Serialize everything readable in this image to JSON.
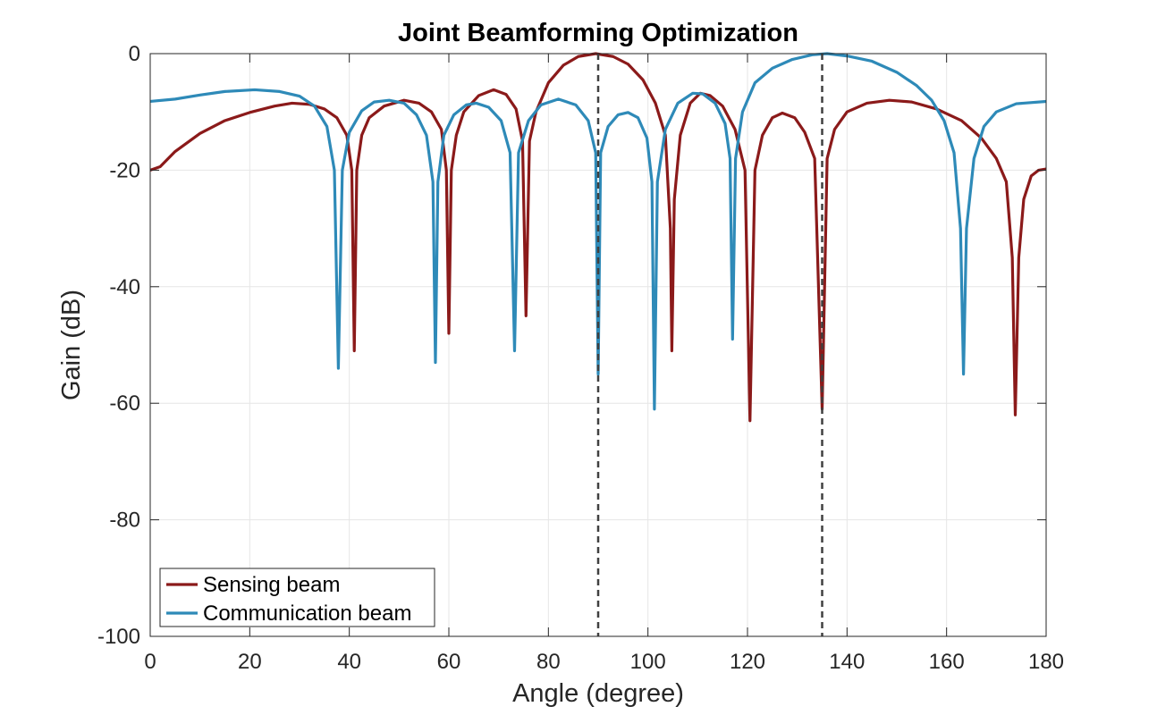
{
  "chart_data": {
    "type": "line",
    "title": "Joint Beamforming Optimization",
    "xlabel": "Angle (degree)",
    "ylabel": "Gain (dB)",
    "xlim": [
      0,
      180
    ],
    "ylim": [
      -100,
      0
    ],
    "xticks": [
      0,
      20,
      40,
      60,
      80,
      100,
      120,
      140,
      160,
      180
    ],
    "yticks": [
      -100,
      -80,
      -60,
      -40,
      -20,
      0
    ],
    "grid": true,
    "legend_location": "bottom-left",
    "reference_lines": [
      {
        "x": 90,
        "style": "dashed",
        "color": "#404040"
      },
      {
        "x": 135,
        "style": "dashed",
        "color": "#404040"
      }
    ],
    "series": [
      {
        "name": "Sensing beam",
        "color": "#8B1A1A",
        "points": [
          [
            0,
            -20
          ],
          [
            2,
            -19.4
          ],
          [
            5,
            -16.8
          ],
          [
            10,
            -13.7
          ],
          [
            15,
            -11.5
          ],
          [
            20,
            -10.1
          ],
          [
            25,
            -9
          ],
          [
            28.5,
            -8.5
          ],
          [
            32,
            -8.7
          ],
          [
            35,
            -9.5
          ],
          [
            37.5,
            -11
          ],
          [
            39.5,
            -14
          ],
          [
            40.5,
            -20
          ],
          [
            41,
            -51
          ],
          [
            41.5,
            -20
          ],
          [
            42.5,
            -14
          ],
          [
            44,
            -11
          ],
          [
            47,
            -9
          ],
          [
            51,
            -8
          ],
          [
            54,
            -8.5
          ],
          [
            56.5,
            -10
          ],
          [
            58.5,
            -13
          ],
          [
            59.5,
            -20
          ],
          [
            60,
            -48
          ],
          [
            60.5,
            -20
          ],
          [
            61.5,
            -14
          ],
          [
            63,
            -10
          ],
          [
            66,
            -7.2
          ],
          [
            69,
            -6.2
          ],
          [
            71.5,
            -7
          ],
          [
            73.5,
            -9.5
          ],
          [
            74.8,
            -15
          ],
          [
            75.5,
            -45
          ],
          [
            76.2,
            -15
          ],
          [
            77.5,
            -10
          ],
          [
            80,
            -5
          ],
          [
            83,
            -2
          ],
          [
            86,
            -0.5
          ],
          [
            89.5,
            0
          ],
          [
            93,
            -0.5
          ],
          [
            96,
            -1.8
          ],
          [
            99,
            -4.5
          ],
          [
            101.5,
            -8.5
          ],
          [
            103.5,
            -14
          ],
          [
            104.5,
            -30
          ],
          [
            104.8,
            -51
          ],
          [
            105.3,
            -25
          ],
          [
            106.5,
            -14
          ],
          [
            108.5,
            -8.5
          ],
          [
            110.5,
            -6.8
          ],
          [
            112.5,
            -7.2
          ],
          [
            115,
            -9
          ],
          [
            117.5,
            -13
          ],
          [
            119.5,
            -20
          ],
          [
            120.5,
            -63
          ],
          [
            121.5,
            -20
          ],
          [
            123,
            -14
          ],
          [
            125,
            -11
          ],
          [
            127,
            -10.2
          ],
          [
            129.5,
            -11
          ],
          [
            131.5,
            -13.5
          ],
          [
            133.5,
            -18
          ],
          [
            135,
            -61
          ],
          [
            136,
            -18
          ],
          [
            137.5,
            -13
          ],
          [
            140,
            -10
          ],
          [
            144,
            -8.5
          ],
          [
            148.5,
            -8
          ],
          [
            153,
            -8.3
          ],
          [
            158,
            -9.5
          ],
          [
            163,
            -11.5
          ],
          [
            167,
            -14.5
          ],
          [
            170,
            -18
          ],
          [
            172,
            -22
          ],
          [
            173.2,
            -35
          ],
          [
            173.8,
            -62
          ],
          [
            174.5,
            -35
          ],
          [
            175.5,
            -25
          ],
          [
            177,
            -21
          ],
          [
            178.5,
            -20
          ],
          [
            180,
            -19.8
          ]
        ]
      },
      {
        "name": "Communication beam",
        "color": "#2E8AB8",
        "points": [
          [
            0,
            -8.2
          ],
          [
            5,
            -7.8
          ],
          [
            10,
            -7.1
          ],
          [
            15,
            -6.5
          ],
          [
            21,
            -6.2
          ],
          [
            26,
            -6.5
          ],
          [
            30,
            -7.3
          ],
          [
            33,
            -9
          ],
          [
            35.5,
            -12.5
          ],
          [
            37,
            -20
          ],
          [
            37.8,
            -54
          ],
          [
            38.6,
            -20
          ],
          [
            40,
            -13.5
          ],
          [
            42.5,
            -9.8
          ],
          [
            45,
            -8.3
          ],
          [
            48,
            -8
          ],
          [
            51,
            -8.5
          ],
          [
            53.5,
            -10.5
          ],
          [
            55.5,
            -14
          ],
          [
            56.8,
            -22
          ],
          [
            57.3,
            -53
          ],
          [
            57.8,
            -22
          ],
          [
            59,
            -14
          ],
          [
            61,
            -10.5
          ],
          [
            63.5,
            -8.8
          ],
          [
            65.5,
            -8.5
          ],
          [
            68,
            -9.2
          ],
          [
            70.5,
            -11.5
          ],
          [
            72.3,
            -17
          ],
          [
            73.2,
            -51
          ],
          [
            74,
            -17
          ],
          [
            76,
            -11.5
          ],
          [
            78.5,
            -8.8
          ],
          [
            82,
            -7.8
          ],
          [
            85.5,
            -8.8
          ],
          [
            88,
            -11.5
          ],
          [
            89.5,
            -17
          ],
          [
            90,
            -55
          ],
          [
            90.5,
            -17
          ],
          [
            92,
            -12.5
          ],
          [
            94,
            -10.5
          ],
          [
            96,
            -10.1
          ],
          [
            98,
            -11
          ],
          [
            99.8,
            -14.5
          ],
          [
            100.8,
            -22
          ],
          [
            101.3,
            -61
          ],
          [
            101.9,
            -22
          ],
          [
            103.5,
            -13
          ],
          [
            106,
            -8.5
          ],
          [
            109,
            -6.8
          ],
          [
            111,
            -6.9
          ],
          [
            113.5,
            -8.5
          ],
          [
            115.5,
            -12
          ],
          [
            116.5,
            -18
          ],
          [
            117,
            -49
          ],
          [
            117.6,
            -18
          ],
          [
            119,
            -10
          ],
          [
            121.5,
            -5
          ],
          [
            125,
            -2.5
          ],
          [
            129,
            -1
          ],
          [
            133,
            -0.2
          ],
          [
            136,
            0
          ],
          [
            140,
            -0.4
          ],
          [
            145,
            -1.3
          ],
          [
            150,
            -3.2
          ],
          [
            154,
            -5.5
          ],
          [
            157,
            -8
          ],
          [
            159.5,
            -11.5
          ],
          [
            161.5,
            -17
          ],
          [
            162.8,
            -30
          ],
          [
            163.4,
            -55
          ],
          [
            164,
            -30
          ],
          [
            165.5,
            -18
          ],
          [
            167.5,
            -12.5
          ],
          [
            170,
            -10
          ],
          [
            174,
            -8.6
          ],
          [
            180,
            -8.2
          ]
        ]
      }
    ]
  }
}
